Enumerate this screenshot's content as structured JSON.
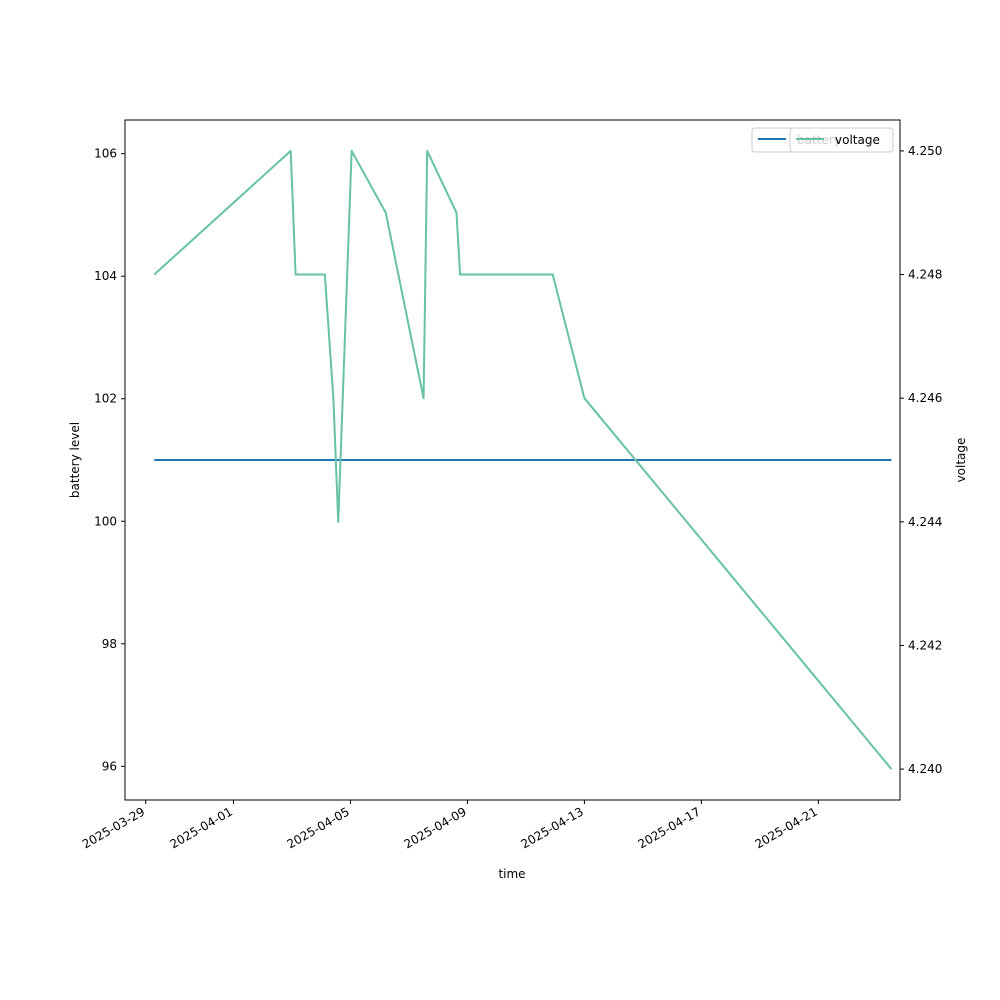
{
  "chart_data": {
    "type": "line",
    "xlabel": "time",
    "ylabel": "battery level",
    "y2label": "voltage",
    "x_type": "date",
    "xlim": [
      "2025-03-28T07:00",
      "2025-04-23T19:00"
    ],
    "ylim": [
      95.45,
      106.55
    ],
    "y2lim": [
      4.2395,
      4.2505
    ],
    "x_ticks": [
      "2025-03-29",
      "2025-04-01",
      "2025-04-05",
      "2025-04-09",
      "2025-04-13",
      "2025-04-17",
      "2025-04-21"
    ],
    "y_ticks": [
      96,
      98,
      100,
      102,
      104,
      106
    ],
    "y2_ticks": [
      "4.240",
      "4.242",
      "4.244",
      "4.246",
      "4.248",
      "4.250"
    ],
    "series": [
      {
        "name": "battery",
        "axis": "left",
        "color": "#1f77b4",
        "x": [
          "2025-03-29T07:00",
          "2025-04-23T12:00"
        ],
        "values": [
          101,
          101
        ]
      },
      {
        "name": "voltage",
        "axis": "right",
        "color": "#66c2a5",
        "x": [
          "2025-03-29T07:00",
          "2025-04-02T23:00",
          "2025-04-03T03:00",
          "2025-04-04T03:00",
          "2025-04-04T10:00",
          "2025-04-04T14:00",
          "2025-04-05T01:00",
          "2025-04-06T05:00",
          "2025-04-07T12:00",
          "2025-04-07T15:00",
          "2025-04-08T15:00",
          "2025-04-08T18:00",
          "2025-04-11T22:00",
          "2025-04-13T00:00",
          "2025-04-23T12:00"
        ],
        "values": [
          4.248,
          4.25,
          4.248,
          4.248,
          4.246,
          4.244,
          4.25,
          4.249,
          4.246,
          4.25,
          4.249,
          4.248,
          4.248,
          4.246,
          4.24
        ]
      }
    ],
    "legend_left": {
      "position": "upper-right",
      "entries": [
        "battery"
      ]
    },
    "legend_right": {
      "position": "upper-right",
      "entries": [
        "voltage"
      ]
    }
  }
}
